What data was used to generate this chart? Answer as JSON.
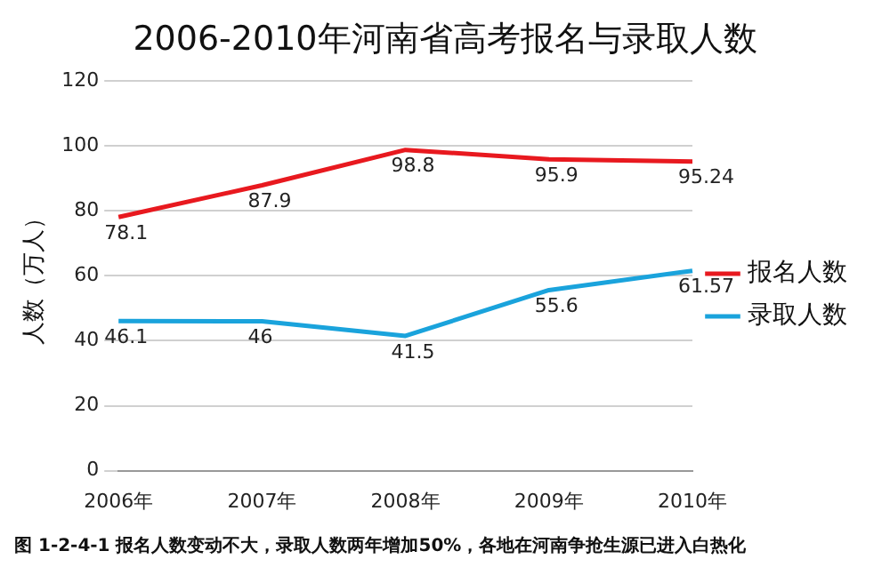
{
  "chart_data": {
    "type": "line",
    "title": "2006-2010年河南省高考报名与录取人数",
    "ylabel": "人数（万人）",
    "categories": [
      "2006年",
      "2007年",
      "2008年",
      "2009年",
      "2010年"
    ],
    "series": [
      {
        "name": "报名人数",
        "color": "#e8191f",
        "values": [
          78.1,
          87.9,
          98.8,
          95.9,
          95.24
        ]
      },
      {
        "name": "录取人数",
        "color": "#1aa3dc",
        "values": [
          46.1,
          46,
          41.5,
          55.6,
          61.57
        ]
      }
    ],
    "ylim": [
      0,
      120
    ],
    "yticks": [
      0,
      20,
      40,
      60,
      80,
      100,
      120
    ],
    "grid": "y",
    "legend": "right",
    "marker": "none",
    "line_style": "solid",
    "data_labels": true,
    "annotations": [
      "图 1-2-4-1 报名人数变动不大，录取人数两年增加50%，各地在河南争抢生源已进入白热化"
    ]
  }
}
